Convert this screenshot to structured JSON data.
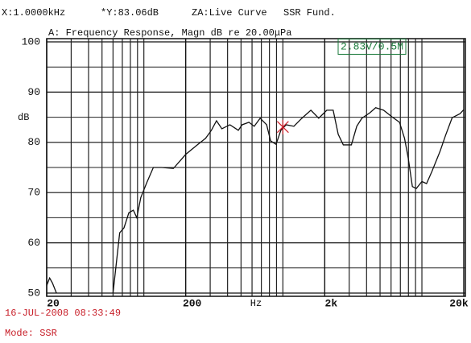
{
  "chart_data": {
    "type": "line",
    "header": [
      "X:1.0000kHz",
      "*Y:83.06dB",
      "ZA:Live Curve",
      "SSR Fund."
    ],
    "title": "A: Frequency Response, Magn dB re 20.00μPa",
    "badge": "2.83V/0.5M",
    "ylabel": "dB",
    "xlabel": "Hz",
    "timestamp": "16-JUL-2008 08:33:49",
    "mode": "Mode: SSR",
    "xscale": "log",
    "xlim": [
      20,
      20000
    ],
    "ylim": [
      50,
      100
    ],
    "xticks": [
      20,
      200,
      {
        "value": 2000,
        "label": "2k"
      },
      {
        "value": 20000,
        "label": "20k"
      }
    ],
    "minor_xticks": [
      30,
      40,
      50,
      60,
      70,
      80,
      90,
      100,
      300,
      400,
      500,
      600,
      700,
      800,
      900,
      1000,
      3000,
      4000,
      5000,
      6000,
      7000,
      8000,
      9000,
      10000
    ],
    "yticks": [
      50,
      60,
      70,
      80,
      90,
      100
    ],
    "minor_yticks": [
      55,
      65,
      75,
      85,
      95
    ],
    "cursor": {
      "x": 1000,
      "y": 83.06,
      "color": "#d0202a"
    },
    "series": [
      {
        "color": "#111111",
        "x": [
          20,
          21,
          22,
          23.5,
          40,
          60,
          67,
          72,
          78,
          84,
          89,
          95,
          105,
          117,
          134,
          163,
          200,
          245,
          278,
          306,
          333,
          364,
          416,
          478,
          509,
          570,
          622,
          686,
          764,
          816,
          893,
          967,
          1057,
          1200,
          1370,
          1590,
          1810,
          2070,
          2300,
          2500,
          2720,
          3110,
          3400,
          3700,
          4230,
          4650,
          5300,
          6080,
          6900,
          7500,
          7980,
          8540,
          9110,
          10000,
          10800,
          11800,
          13500,
          14800,
          16500,
          18800,
          20000
        ],
        "values": [
          51.5,
          53,
          52,
          50,
          null,
          50,
          62,
          63,
          66,
          66.5,
          65,
          69,
          72,
          75,
          75,
          74.8,
          77.6,
          79.6,
          80.8,
          82.4,
          84.3,
          82.7,
          83.5,
          82.4,
          83.5,
          84,
          83.2,
          84.8,
          83.5,
          80.3,
          79.6,
          82.4,
          83.5,
          83.2,
          84.8,
          86.4,
          84.8,
          86.4,
          86.4,
          81.6,
          79.5,
          79.5,
          83.2,
          84.8,
          85.9,
          86.9,
          86.4,
          85.1,
          84,
          80.8,
          76.8,
          71.2,
          70.8,
          72.2,
          71.8,
          74.2,
          78.2,
          81.4,
          84.9,
          85.7,
          86.5
        ]
      }
    ]
  }
}
